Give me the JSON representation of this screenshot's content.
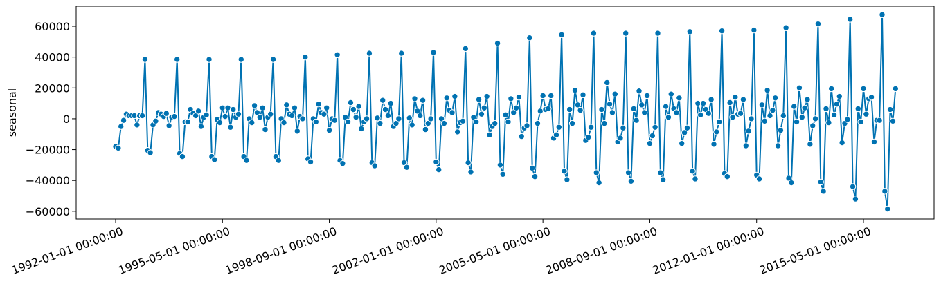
{
  "chart_data": {
    "type": "line",
    "title": "",
    "xlabel": "",
    "ylabel": "seasonal",
    "ylim": [
      -65000,
      73000
    ],
    "x_start": "1992-01-01",
    "x_tick_labels": [
      "1992-01-01 00:00:00",
      "1995-05-01 00:00:00",
      "1998-09-01 00:00:00",
      "2002-01-01 00:00:00",
      "2005-05-01 00:00:00",
      "2008-09-01 00:00:00",
      "2012-01-01 00:00:00",
      "2015-05-01 00:00:00"
    ],
    "y_ticks": [
      -60000,
      -40000,
      -20000,
      0,
      20000,
      40000,
      60000
    ],
    "y_tick_labels": [
      "−60000",
      "−40000",
      "−20000",
      "0",
      "20000",
      "40000",
      "60000"
    ],
    "grid": false,
    "legend": "none",
    "markers": true,
    "color": "#0072b2",
    "series": [
      {
        "name": "",
        "x_unit": "month",
        "values": [
          -18000,
          -19000,
          -5000,
          -1000,
          3000,
          2000,
          2000,
          2000,
          -4000,
          2000,
          2000,
          38500,
          -20500,
          -22000,
          -4000,
          -1500,
          4000,
          3000,
          1500,
          3500,
          -4500,
          1000,
          1500,
          38500,
          -22500,
          -24500,
          -2000,
          -2000,
          6000,
          3500,
          2000,
          5000,
          -5000,
          1000,
          2500,
          38500,
          -24500,
          -26500,
          -500,
          -2500,
          7000,
          1500,
          7000,
          -5500,
          6000,
          1000,
          3000,
          38500,
          -24500,
          -27000,
          0,
          -2500,
          8500,
          4000,
          1000,
          7000,
          -7000,
          1000,
          3000,
          38500,
          -24500,
          -27000,
          0,
          -2500,
          9000,
          3000,
          2000,
          7000,
          -8000,
          1500,
          0,
          40000,
          -26000,
          -28000,
          0,
          -2000,
          9500,
          4000,
          3000,
          7000,
          -7500,
          0,
          -1000,
          41500,
          -27000,
          -29000,
          1000,
          -2000,
          10500,
          6000,
          1000,
          8000,
          -6500,
          -2000,
          0,
          42500,
          -28500,
          -30500,
          500,
          -3000,
          12000,
          6000,
          2000,
          10000,
          -5000,
          -3000,
          0,
          42500,
          -28500,
          -31500,
          500,
          -4000,
          13000,
          5000,
          2000,
          12000,
          -7000,
          -3000,
          0,
          43000,
          -28000,
          -33000,
          0,
          -3000,
          13500,
          5500,
          4000,
          14500,
          -8500,
          -2500,
          -1500,
          45500,
          -28500,
          -34500,
          1000,
          -2000,
          12500,
          3000,
          7000,
          14500,
          -10500,
          -5000,
          -3000,
          49000,
          -30000,
          -36000,
          2500,
          -2000,
          13000,
          4000,
          7000,
          14000,
          -11500,
          -6000,
          -4500,
          52500,
          -32000,
          -37500,
          -3000,
          5000,
          15000,
          6000,
          6500,
          15000,
          -12500,
          -10500,
          -5500,
          54500,
          -34000,
          -39500,
          6000,
          -3000,
          18500,
          9000,
          5500,
          15500,
          -14000,
          -12000,
          -5500,
          55500,
          -35000,
          -41500,
          6000,
          -3000,
          23500,
          9500,
          4000,
          16000,
          -15000,
          -12500,
          -6000,
          55500,
          -35000,
          -40500,
          6500,
          -1000,
          18000,
          9000,
          4000,
          15000,
          -16000,
          -11000,
          -5500,
          55500,
          -35000,
          -39500,
          8000,
          1000,
          16000,
          6500,
          4000,
          13500,
          -16000,
          -9000,
          -6000,
          56500,
          -34000,
          -39000,
          10000,
          2500,
          10000,
          6000,
          3500,
          12500,
          -16500,
          -8500,
          -2000,
          57000,
          -35500,
          -37500,
          10500,
          1000,
          14000,
          3000,
          3500,
          12500,
          -17500,
          -8000,
          0,
          57500,
          -36500,
          -39000,
          9000,
          -1500,
          18500,
          2000,
          5500,
          13500,
          -17500,
          -7500,
          2000,
          59000,
          -38500,
          -41500,
          8000,
          -2000,
          20000,
          1000,
          7000,
          12500,
          -16500,
          -4500,
          0,
          61500,
          -41000,
          -47000,
          6500,
          -2500,
          19500,
          2500,
          9500,
          14500,
          -15500,
          -3000,
          -500,
          64500,
          -44000,
          -52000,
          6500,
          -2000,
          19500,
          3000,
          13000,
          14000,
          -15000,
          -1000,
          -1000,
          67500,
          -47000,
          -58500,
          6000,
          -1500,
          19500
        ]
      }
    ]
  }
}
